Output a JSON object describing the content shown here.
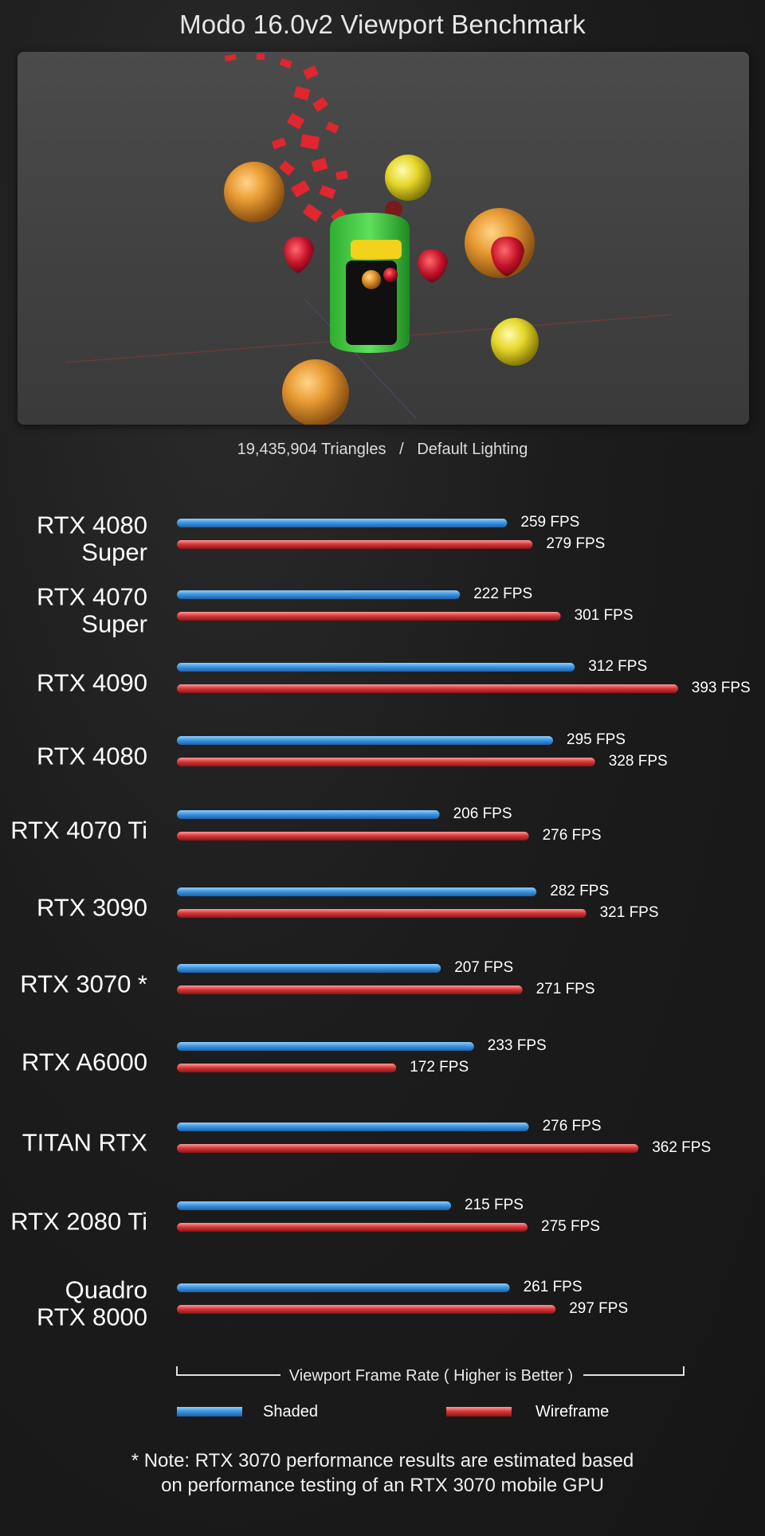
{
  "page": {
    "title": "Modo 16.0v2 Viewport Benchmark",
    "scene_info": "19,435,904 Triangles   /   Default Lighting",
    "note_line1": "* Note: RTX 3070 performance results are estimated based",
    "note_line2": "on performance testing of an RTX 3070 mobile GPU"
  },
  "chart_data": {
    "type": "bar",
    "orientation": "horizontal",
    "categories": [
      [
        "RTX 4080",
        "Super"
      ],
      [
        "RTX 4070",
        "Super"
      ],
      [
        "RTX 4090"
      ],
      [
        "RTX 4080"
      ],
      [
        "RTX 4070 Ti"
      ],
      [
        "RTX 3090"
      ],
      [
        "RTX 3070 *"
      ],
      [
        "RTX A6000"
      ],
      [
        "TITAN RTX"
      ],
      [
        "RTX 2080 Ti"
      ],
      [
        "Quadro",
        "RTX 8000"
      ]
    ],
    "series": [
      {
        "name": "Shaded",
        "color": "#3a8fd8",
        "values": [
          259,
          222,
          312,
          295,
          206,
          282,
          207,
          233,
          276,
          215,
          261
        ],
        "labels": [
          "259 FPS",
          "222 FPS",
          "312 FPS",
          "295 FPS",
          "206 FPS",
          "282 FPS",
          "207 FPS",
          "233 FPS",
          "276 FPS",
          "215 FPS",
          "261 FPS"
        ]
      },
      {
        "name": "Wireframe",
        "color": "#d83a3a",
        "values": [
          279,
          301,
          393,
          328,
          276,
          321,
          271,
          172,
          362,
          275,
          297
        ],
        "labels": [
          "279 FPS",
          "301 FPS",
          "393 FPS",
          "328 FPS",
          "276 FPS",
          "321 FPS",
          "271 FPS",
          "172 FPS",
          "362 FPS",
          "275 FPS",
          "297 FPS"
        ]
      }
    ],
    "axis_label": "Viewport Frame Rate ( Higher is Better )",
    "grid": false,
    "legend_position": "bottom"
  }
}
